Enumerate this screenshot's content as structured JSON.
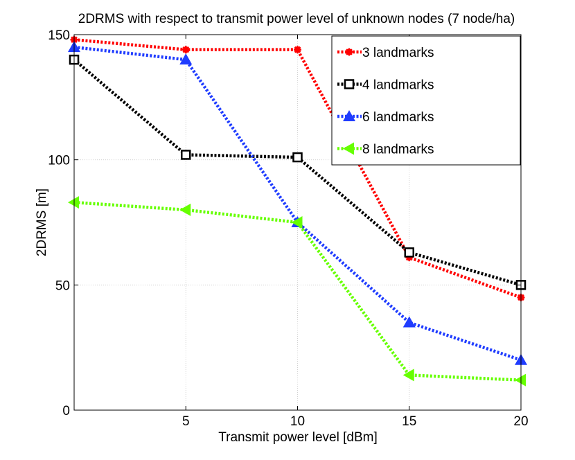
{
  "chart_data": {
    "type": "line",
    "title": "2DRMS with respect to transmit power level of unknown nodes (7 node/ha)",
    "xlabel": "Transmit power level [dBm]",
    "ylabel": "2DRMS [m]",
    "xlim": [
      0,
      20
    ],
    "ylim": [
      0,
      150
    ],
    "x_ticks": [
      5,
      10,
      15,
      20
    ],
    "y_ticks": [
      0,
      50,
      100,
      150
    ],
    "x": [
      0,
      5,
      10,
      15,
      20
    ],
    "grid": true,
    "legend_position": "top-right",
    "series": [
      {
        "name": "3 landmarks",
        "values": [
          148,
          144,
          144,
          61,
          45
        ],
        "color": "#ff0000",
        "marker": "asterisk"
      },
      {
        "name": "4 landmarks",
        "values": [
          140,
          102,
          101,
          63,
          50
        ],
        "color": "#000000",
        "marker": "square"
      },
      {
        "name": "6 landmarks",
        "values": [
          145,
          140,
          75,
          35,
          20
        ],
        "color": "#1f3cff",
        "marker": "triangle-up"
      },
      {
        "name": "8 landmarks",
        "values": [
          83,
          80,
          75,
          14,
          12
        ],
        "color": "#66ff00",
        "marker": "triangle-left"
      }
    ]
  }
}
